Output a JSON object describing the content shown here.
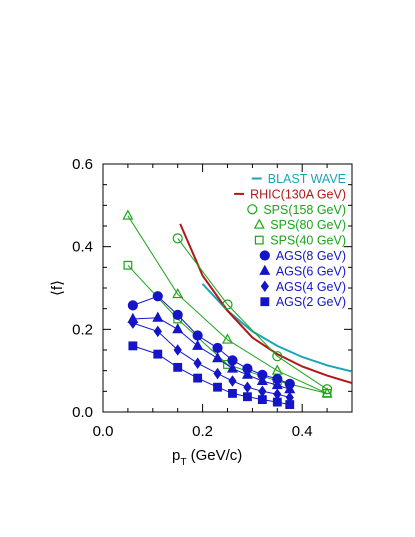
{
  "chart_data": {
    "type": "line",
    "xlabel_main": "p",
    "xlabel_sub": "T",
    "xlabel_units": " (GeV/c)",
    "ylabel": "⟨f⟩",
    "xlim": [
      0.0,
      0.5
    ],
    "ylim": [
      0.0,
      0.6
    ],
    "xticks": [
      0.0,
      0.2,
      0.4
    ],
    "xtick_labels": [
      "0.0",
      "0.2",
      "0.4"
    ],
    "yticks": [
      0.0,
      0.2,
      0.4,
      0.6
    ],
    "ytick_labels": [
      "0.0",
      "0.2",
      "0.4",
      "0.6"
    ],
    "legend_position": "top-right",
    "curves": [
      {
        "name": "BLAST WAVE",
        "color": "#1aa6b7",
        "x": [
          0.2,
          0.25,
          0.3,
          0.35,
          0.4,
          0.45,
          0.5
        ],
        "y": [
          0.31,
          0.245,
          0.195,
          0.16,
          0.133,
          0.113,
          0.098
        ]
      },
      {
        "name": "RHIC(130A GeV)",
        "color": "#b01818",
        "x": [
          0.155,
          0.2,
          0.25,
          0.3,
          0.35,
          0.4,
          0.45,
          0.5
        ],
        "y": [
          0.455,
          0.33,
          0.245,
          0.18,
          0.14,
          0.11,
          0.088,
          0.07
        ]
      }
    ],
    "series": [
      {
        "name": "SPS(158 GeV)",
        "color": "#1aa51a",
        "marker": "open-circle",
        "x": [
          0.15,
          0.25,
          0.35,
          0.45
        ],
        "y": [
          0.42,
          0.26,
          0.135,
          0.055
        ]
      },
      {
        "name": "SPS(80 GeV)",
        "color": "#1aa51a",
        "marker": "open-triangle",
        "x": [
          0.05,
          0.15,
          0.25,
          0.35,
          0.45
        ],
        "y": [
          0.475,
          0.285,
          0.175,
          0.1,
          0.045
        ]
      },
      {
        "name": "SPS(40 GeV)",
        "color": "#1aa51a",
        "marker": "open-square",
        "x": [
          0.05,
          0.15,
          0.25,
          0.35,
          0.45
        ],
        "y": [
          0.355,
          0.225,
          0.115,
          0.075,
          0.045
        ]
      },
      {
        "name": "AGS(8 GeV)",
        "color": "#1515c8",
        "marker": "filled-circle",
        "x": [
          0.06,
          0.11,
          0.15,
          0.19,
          0.23,
          0.26,
          0.29,
          0.32,
          0.35,
          0.375
        ],
        "y": [
          0.258,
          0.28,
          0.235,
          0.185,
          0.155,
          0.125,
          0.105,
          0.09,
          0.08,
          0.068
        ]
      },
      {
        "name": "AGS(6 GeV)",
        "color": "#1515c8",
        "marker": "filled-triangle",
        "x": [
          0.06,
          0.11,
          0.15,
          0.19,
          0.23,
          0.26,
          0.29,
          0.32,
          0.35,
          0.375
        ],
        "y": [
          0.225,
          0.228,
          0.2,
          0.16,
          0.13,
          0.105,
          0.09,
          0.075,
          0.065,
          0.055
        ]
      },
      {
        "name": "AGS(4 GeV)",
        "color": "#1515c8",
        "marker": "filled-diamond",
        "x": [
          0.06,
          0.11,
          0.15,
          0.19,
          0.23,
          0.26,
          0.29,
          0.32,
          0.35,
          0.375
        ],
        "y": [
          0.215,
          0.195,
          0.15,
          0.118,
          0.093,
          0.075,
          0.06,
          0.05,
          0.043,
          0.035
        ]
      },
      {
        "name": "AGS(2 GeV)",
        "color": "#1515c8",
        "marker": "filled-square",
        "x": [
          0.06,
          0.11,
          0.15,
          0.19,
          0.23,
          0.26,
          0.29,
          0.32,
          0.35,
          0.375
        ],
        "y": [
          0.16,
          0.14,
          0.108,
          0.082,
          0.06,
          0.045,
          0.037,
          0.03,
          0.024,
          0.018
        ]
      }
    ],
    "legend": [
      {
        "label": "BLAST WAVE",
        "color": "#1aa6b7",
        "symbol": "line"
      },
      {
        "label": "RHIC(130A GeV)",
        "color": "#b01818",
        "symbol": "line"
      },
      {
        "label": "SPS(158 GeV)",
        "color": "#1aa51a",
        "symbol": "open-circle"
      },
      {
        "label": "SPS(80 GeV)",
        "color": "#1aa51a",
        "symbol": "open-triangle"
      },
      {
        "label": "SPS(40 GeV)",
        "color": "#1aa51a",
        "symbol": "open-square"
      },
      {
        "label": "AGS(8 GeV)",
        "color": "#1515c8",
        "symbol": "filled-circle"
      },
      {
        "label": "AGS(6 GeV)",
        "color": "#1515c8",
        "symbol": "filled-triangle"
      },
      {
        "label": "AGS(4 GeV)",
        "color": "#1515c8",
        "symbol": "filled-diamond"
      },
      {
        "label": "AGS(2 GeV)",
        "color": "#1515c8",
        "symbol": "filled-square"
      }
    ]
  }
}
